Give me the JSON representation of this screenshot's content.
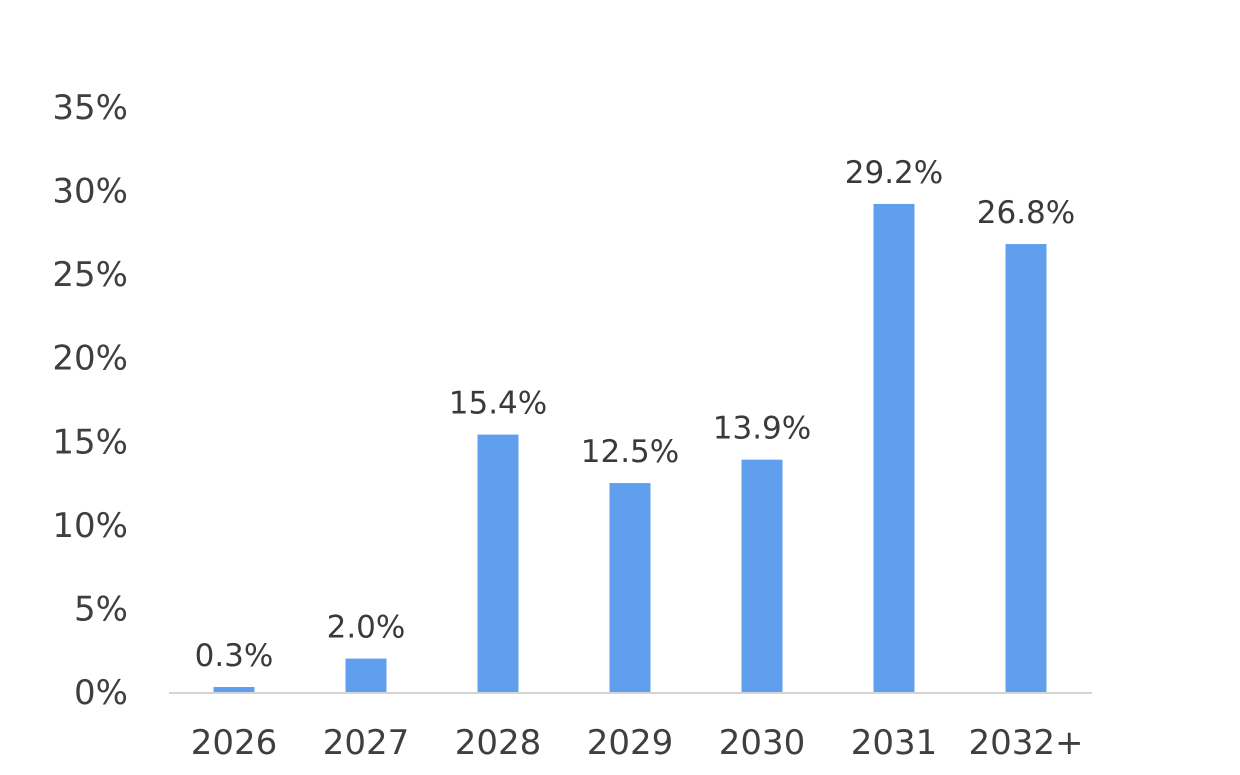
{
  "colors": {
    "bar": "#5f9fee",
    "axis_line": "#d4d4d4",
    "text": "#3f3f3f",
    "background": "#ffffff"
  },
  "chart_data": {
    "type": "bar",
    "title": "",
    "xlabel": "",
    "ylabel": "",
    "categories": [
      "2026",
      "2027",
      "2028",
      "2029",
      "2030",
      "2031",
      "2032+"
    ],
    "values": [
      0.3,
      2.0,
      15.4,
      12.5,
      13.9,
      29.2,
      26.8
    ],
    "value_labels": [
      "0.3%",
      "2.0%",
      "15.4%",
      "12.5%",
      "13.9%",
      "29.2%",
      "26.8%"
    ],
    "ylim": [
      0,
      35
    ],
    "yticks": [
      0,
      5,
      10,
      15,
      20,
      25,
      30,
      35
    ],
    "ytick_labels": [
      "0%",
      "5%",
      "10%",
      "15%",
      "20%",
      "25%",
      "30%",
      "35%"
    ],
    "grid": false,
    "legend": "none"
  }
}
